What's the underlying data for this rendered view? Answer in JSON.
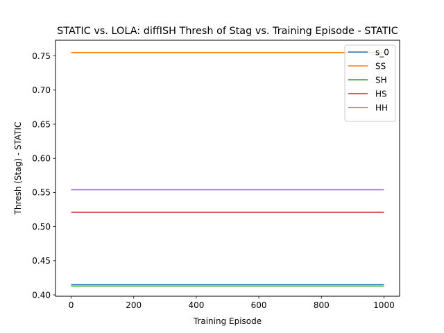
{
  "chart_data": {
    "type": "line",
    "title": "STATIC vs. LOLA: diffISH Thresh of Stag vs. Training Episode - STATIC",
    "xlabel": "Training Episode",
    "ylabel": "Thresh (Stag) - STATIC",
    "xlim": [
      -50,
      1050
    ],
    "ylim": [
      0.398,
      0.773
    ],
    "x_ticks": [
      0,
      200,
      400,
      600,
      800,
      1000
    ],
    "y_ticks": [
      0.4,
      0.45,
      0.5,
      0.55,
      0.6,
      0.65,
      0.7,
      0.75
    ],
    "y_tick_labels": [
      "0.40",
      "0.45",
      "0.50",
      "0.55",
      "0.60",
      "0.65",
      "0.70",
      "0.75"
    ],
    "grid": false,
    "legend_position": "top-right",
    "series": [
      {
        "name": "s_0",
        "color": "#1f77b4",
        "x": [
          0,
          1000
        ],
        "y": [
          0.415,
          0.415
        ]
      },
      {
        "name": "SS",
        "color": "#ff7f0e",
        "x": [
          0,
          1000
        ],
        "y": [
          0.755,
          0.755
        ]
      },
      {
        "name": "SH",
        "color": "#2ca02c",
        "x": [
          0,
          1000
        ],
        "y": [
          0.413,
          0.413
        ]
      },
      {
        "name": "HS",
        "color": "#d62728",
        "x": [
          0,
          1000
        ],
        "y": [
          0.521,
          0.521
        ]
      },
      {
        "name": "HH",
        "color": "#9467bd",
        "x": [
          0,
          1000
        ],
        "y": [
          0.554,
          0.554
        ]
      }
    ]
  }
}
